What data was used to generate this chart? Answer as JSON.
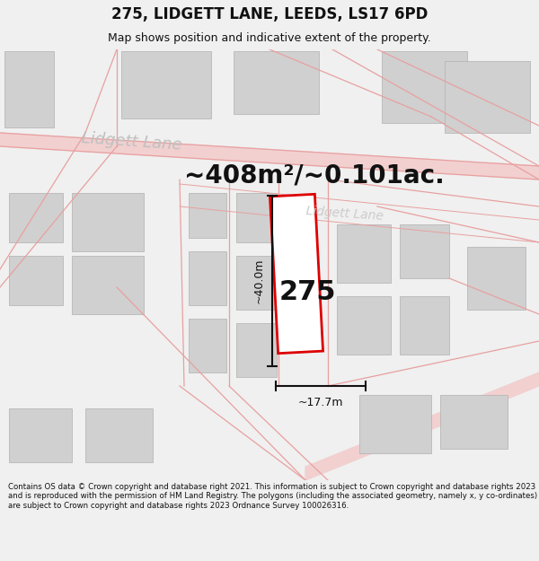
{
  "title": "275, LIDGETT LANE, LEEDS, LS17 6PD",
  "subtitle": "Map shows position and indicative extent of the property.",
  "area_text": "~408m²/~0.101ac.",
  "width_label": "~17.7m",
  "height_label": "~40.0m",
  "property_number": "275",
  "footer_text": "Contains OS data © Crown copyright and database right 2021. This information is subject to Crown copyright and database rights 2023 and is reproduced with the permission of HM Land Registry. The polygons (including the associated geometry, namely x, y co-ordinates) are subject to Crown copyright and database rights 2023 Ordnance Survey 100026316.",
  "bg_color": "#f0f0f0",
  "map_bg": "#ffffff",
  "road_color_line": "#e8a0a0",
  "road_color_band": "#f2d0d0",
  "building_color": "#d0d0d0",
  "building_ec": "#b0b0b0",
  "property_outline_color": "#dd0000",
  "dimension_color": "#111111",
  "street_label_color": "#c0c0c0",
  "title_fontsize": 12,
  "subtitle_fontsize": 9,
  "footer_fontsize": 6.2
}
